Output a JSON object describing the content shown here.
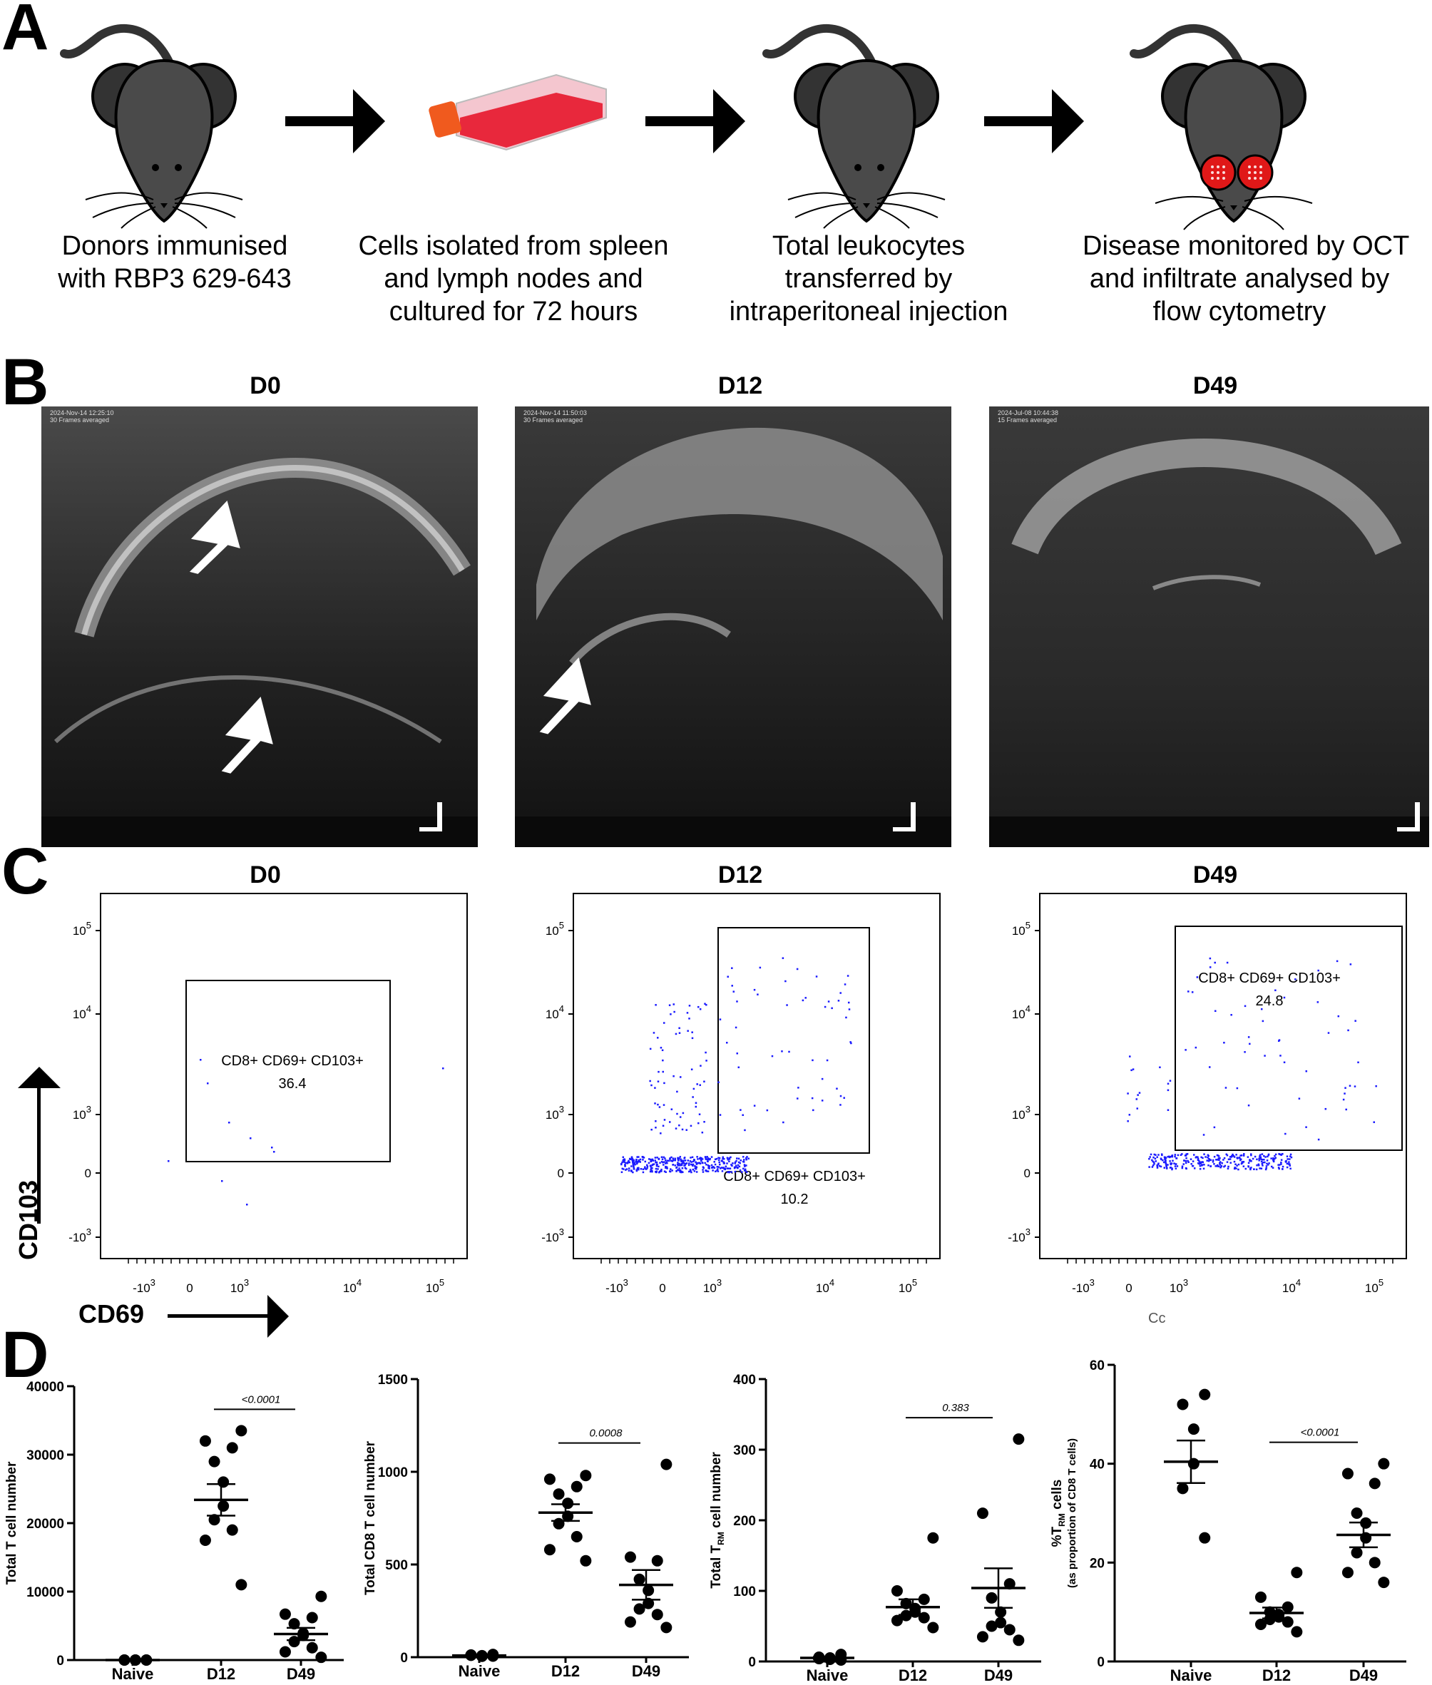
{
  "panel_a": {
    "letter": "A",
    "steps": [
      {
        "lines": [
          "Donors immunised",
          "with RBP3 629-643"
        ]
      },
      {
        "lines": [
          "Cells isolated from spleen",
          "and lymph nodes and",
          "cultured for 72 hours"
        ]
      },
      {
        "lines": [
          "Total leukocytes",
          "transferred by",
          "intraperitoneal injection"
        ]
      },
      {
        "lines": [
          "Disease monitored by OCT",
          "and infiltrate analysed by",
          "flow cytometry"
        ]
      }
    ]
  },
  "panel_b": {
    "letter": "B",
    "images": [
      {
        "title": "D0",
        "stamp": "2024-Nov-14 12:25:10\n30 Frames averaged"
      },
      {
        "title": "D12",
        "stamp": "2024-Nov-14 11:50:03\n30 Frames averaged"
      },
      {
        "title": "D49",
        "stamp": "2024-Jul-08 10:44:38\n15 Frames averaged"
      }
    ]
  },
  "panel_c": {
    "letter": "C",
    "y_axis_label": "CD103",
    "x_axis_label": "CD69",
    "stray_text": "Cc",
    "plots": [
      {
        "title": "D0",
        "gate_line1": "CD8+ CD69+ CD103+",
        "gate_value": "36.4"
      },
      {
        "title": "D12",
        "gate_line1": "CD8+ CD69+ CD103+",
        "gate_value": "10.2"
      },
      {
        "title": "D49",
        "gate_line1": "CD8+ CD69+ CD103+",
        "gate_value": "24.8"
      }
    ],
    "y_ticks": [
      "10^5",
      "10^4",
      "10^3",
      "0",
      "-10^3"
    ],
    "x_ticks": [
      "-10^3",
      "0",
      "10^3",
      "10^4",
      "10^5"
    ]
  },
  "panel_d": {
    "letter": "D"
  },
  "chart_data": [
    {
      "type": "scatter",
      "ylabel": "Total T cell number",
      "ylim": [
        0,
        40000
      ],
      "yticks": [
        0,
        10000,
        20000,
        30000,
        40000
      ],
      "categories": [
        "Naive",
        "D12",
        "D49"
      ],
      "points": [
        [
          0,
          0,
          0,
          0,
          0,
          0
        ],
        [
          33500,
          32000,
          31000,
          29000,
          26000,
          22500,
          20500,
          19000,
          17500,
          11000
        ],
        [
          9300,
          6700,
          6200,
          5300,
          3900,
          3600,
          2700,
          1800,
          1200,
          400
        ]
      ],
      "means": [
        0,
        23400,
        3800
      ],
      "sem": [
        0,
        2300,
        900
      ],
      "comparison": {
        "from": "D12",
        "to": "D49",
        "p": "<0.0001"
      }
    },
    {
      "type": "scatter",
      "ylabel": "Total CD8 T cell number",
      "ylim": [
        0,
        1500
      ],
      "yticks": [
        0,
        500,
        1000,
        1500
      ],
      "categories": [
        "Naive",
        "D12",
        "D49"
      ],
      "points": [
        [
          15,
          10,
          5,
          8,
          12,
          6
        ],
        [
          980,
          960,
          920,
          880,
          830,
          760,
          720,
          650,
          580,
          520
        ],
        [
          1040,
          540,
          520,
          420,
          360,
          290,
          260,
          230,
          190,
          160
        ]
      ],
      "means": [
        9,
        780,
        390
      ],
      "sem": [
        2,
        45,
        80
      ],
      "comparison": {
        "from": "D12",
        "to": "D49",
        "p": "0.0008"
      }
    },
    {
      "type": "scatter",
      "ylabel": "Total T_RM cell number",
      "ylim": [
        0,
        400
      ],
      "yticks": [
        0,
        100,
        200,
        300,
        400
      ],
      "categories": [
        "Naive",
        "D12",
        "D49"
      ],
      "points": [
        [
          10,
          6,
          5,
          3,
          4,
          2
        ],
        [
          175,
          100,
          88,
          82,
          75,
          70,
          65,
          62,
          58,
          48
        ],
        [
          315,
          210,
          110,
          90,
          70,
          55,
          50,
          45,
          35,
          30
        ]
      ],
      "means": [
        5,
        77,
        104
      ],
      "sem": [
        1.5,
        11,
        28
      ],
      "comparison": {
        "from": "D12",
        "to": "D49",
        "p": "0.383"
      }
    },
    {
      "type": "scatter",
      "ylabel": "%T_RM cells",
      "ylabel_sub": "(as proportion of CD8 T cells)",
      "ylim": [
        0,
        60
      ],
      "yticks": [
        0,
        20,
        40,
        60
      ],
      "categories": [
        "Naive",
        "D12",
        "D49"
      ],
      "points": [
        [
          54,
          52,
          47,
          40,
          35,
          25
        ],
        [
          18,
          13,
          11,
          10,
          9.5,
          9,
          8.5,
          8,
          7.5,
          6
        ],
        [
          40,
          38,
          36,
          30,
          28,
          25,
          22,
          20,
          18,
          16
        ]
      ],
      "means": [
        40.4,
        9.8,
        25.6
      ],
      "sem": [
        4.3,
        1.1,
        2.5
      ],
      "comparison": {
        "from": "D12",
        "to": "D49",
        "p": "<0.0001"
      }
    }
  ],
  "colors": {
    "mouse_body": "#4a4a4a",
    "mouse_ear": "#333333",
    "flask_liquid": "#e8283c",
    "flask_cap": "#f05a1e",
    "eye_red": "#e01818",
    "event_dot": "#1a1aff"
  }
}
